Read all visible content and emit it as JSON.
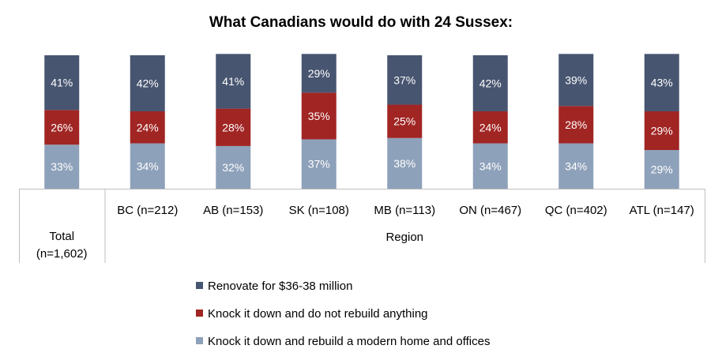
{
  "chart_data": {
    "type": "bar",
    "stacked": true,
    "percent": true,
    "title": "What Canadians would do with 24 Sussex:",
    "categories": [
      "Total\n(n=1,602)",
      "BC (n=212)",
      "AB (n=153)",
      "SK (n=108)",
      "MB (n=113)",
      "ON (n=467)",
      "QC (n=402)",
      "ATL (n=147)"
    ],
    "group_label": "Region",
    "series": [
      {
        "name": "Knock it down and rebuild a modern home and offices",
        "color": "#8EA1BA",
        "values": [
          33,
          34,
          32,
          37,
          38,
          34,
          34,
          29
        ]
      },
      {
        "name": "Knock it down and do not rebuild anything",
        "color": "#A02523",
        "values": [
          26,
          24,
          28,
          35,
          25,
          24,
          28,
          29
        ]
      },
      {
        "name": "Renovate for $36-38 million",
        "color": "#475570",
        "values": [
          41,
          42,
          41,
          29,
          37,
          42,
          39,
          43
        ]
      }
    ],
    "legend_order": [
      2,
      1,
      0
    ],
    "legend_position": "bottom",
    "grid": false
  }
}
